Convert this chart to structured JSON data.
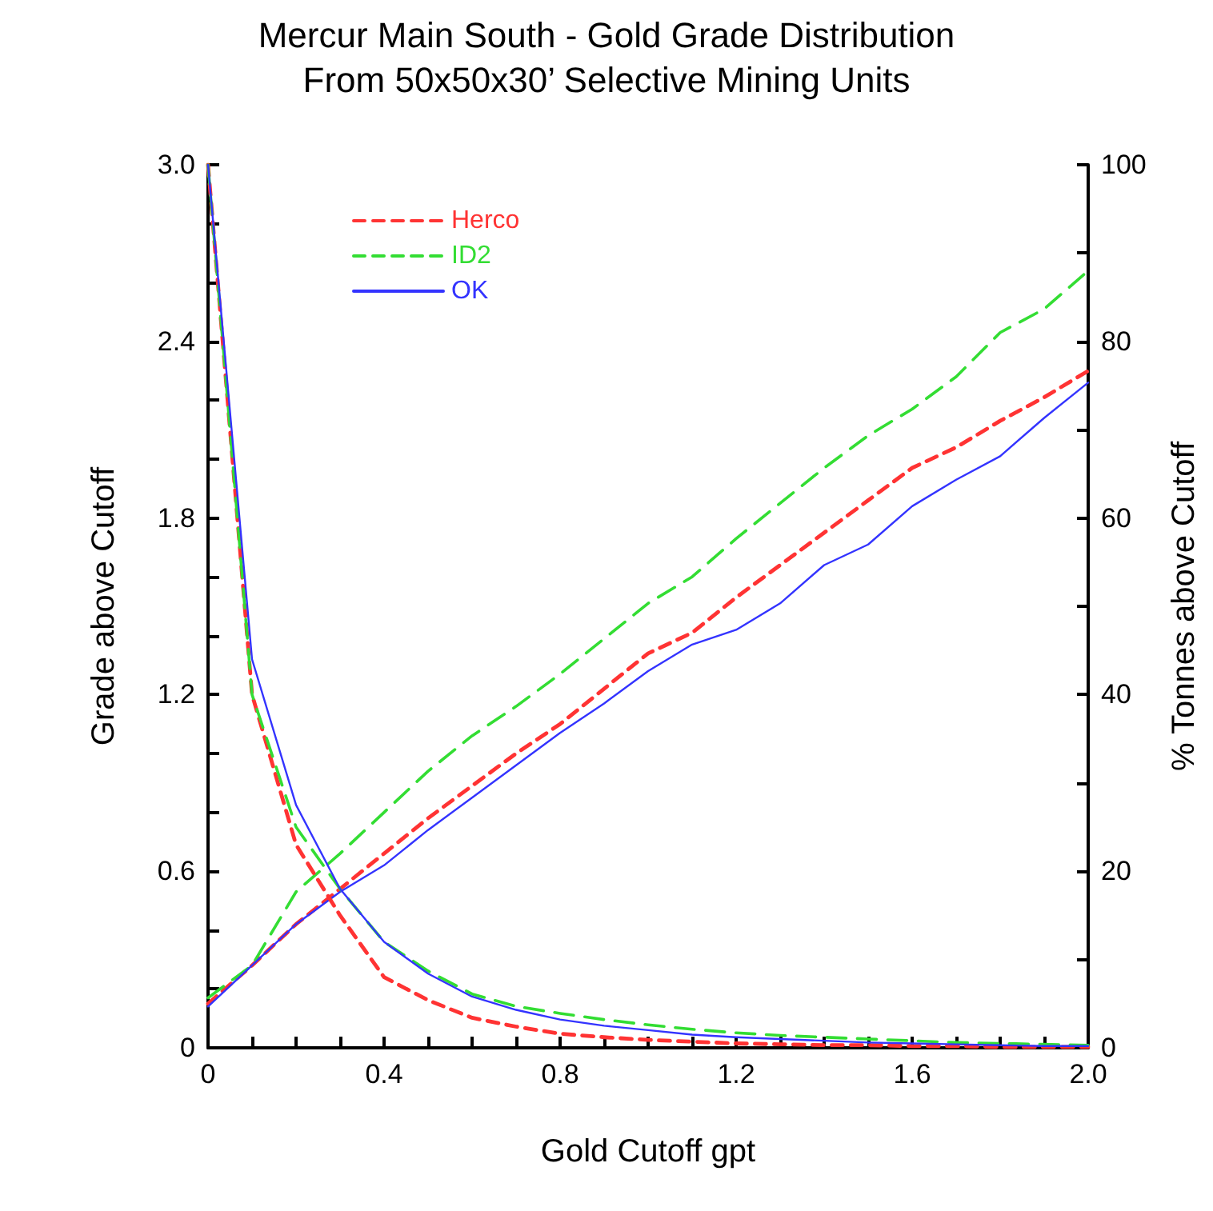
{
  "chart_data": {
    "type": "line",
    "title": "Mercur Main South - Gold Grade Distribution",
    "subtitle": "From 50x50x30’ Selective Mining Units",
    "xlabel": "Gold Cutoff gpt",
    "ylabel": "Grade above Cutoff",
    "y2label": "% Tonnes above Cutoff",
    "x": [
      0,
      0.1,
      0.2,
      0.3,
      0.4,
      0.5,
      0.6,
      0.7,
      0.8,
      0.9,
      1.0,
      1.1,
      1.2,
      1.3,
      1.4,
      1.5,
      1.6,
      1.7,
      1.8,
      1.9,
      2.0
    ],
    "xlim": [
      0,
      2
    ],
    "xticks": [
      0,
      {
        "value": 0.1,
        "label": null
      },
      {
        "value": 0.2,
        "label": null
      },
      {
        "value": 0.3,
        "label": null
      },
      0.4,
      {
        "value": 0.5,
        "label": null
      },
      {
        "value": 0.6,
        "label": null
      },
      {
        "value": 0.7,
        "label": null
      },
      0.8,
      {
        "value": 0.9,
        "label": null
      },
      {
        "value": 1.0,
        "label": null
      },
      {
        "value": 1.1,
        "label": null
      },
      1.2,
      {
        "value": 1.3,
        "label": null
      },
      {
        "value": 1.4,
        "label": null
      },
      {
        "value": 1.5,
        "label": null
      },
      1.6,
      {
        "value": 1.7,
        "label": null
      },
      {
        "value": 1.8,
        "label": null
      },
      {
        "value": 1.9,
        "label": null
      },
      {
        "value": 2.0,
        "label": "2.0"
      }
    ],
    "ylim": [
      0,
      3
    ],
    "yticks": [
      0,
      {
        "value": 0.2,
        "label": null
      },
      {
        "value": 0.4,
        "label": null
      },
      0.6,
      {
        "value": 0.8,
        "label": null
      },
      {
        "value": 1.0,
        "label": null
      },
      1.2,
      {
        "value": 1.4,
        "label": null
      },
      {
        "value": 1.6,
        "label": null
      },
      1.8,
      {
        "value": 2.0,
        "label": null
      },
      {
        "value": 2.2,
        "label": null
      },
      2.4,
      {
        "value": 2.6,
        "label": null
      },
      {
        "value": 2.8,
        "label": null
      },
      {
        "value": 3.0,
        "label": "3.0"
      }
    ],
    "y2lim": [
      0,
      100
    ],
    "y2ticks": [
      0,
      {
        "value": 10,
        "label": null
      },
      20,
      {
        "value": 30,
        "label": null
      },
      40,
      {
        "value": 50,
        "label": null
      },
      60,
      {
        "value": 70,
        "label": null
      },
      80,
      {
        "value": 90,
        "label": null
      },
      100
    ],
    "grid": false,
    "legend": "top left",
    "marker": "none",
    "series": [
      {
        "name": "Herco",
        "color": "#ff3333",
        "line_style": "dashed",
        "values": [
          0.15,
          0.28,
          0.42,
          0.54,
          0.66,
          0.78,
          0.89,
          1.0,
          1.1,
          1.22,
          1.34,
          1.41,
          1.53,
          1.64,
          1.75,
          1.86,
          1.97,
          2.04,
          2.13,
          2.21,
          2.3
        ]
      },
      {
        "name": "ID2",
        "color": "#33dd33",
        "line_style": "dashed",
        "values": [
          0.17,
          0.28,
          0.53,
          0.66,
          0.8,
          0.94,
          1.06,
          1.16,
          1.27,
          1.39,
          1.51,
          1.6,
          1.73,
          1.85,
          1.97,
          2.08,
          2.17,
          2.28,
          2.43,
          2.51,
          2.64
        ]
      },
      {
        "name": "OK",
        "color": "#3333ff",
        "line_style": "solid",
        "values": [
          0.14,
          0.28,
          0.42,
          0.53,
          0.62,
          0.74,
          0.85,
          0.96,
          1.07,
          1.17,
          1.28,
          1.37,
          1.42,
          1.51,
          1.64,
          1.71,
          1.84,
          1.93,
          2.01,
          2.14,
          2.26
        ]
      },
      {
        "color": "#ff3333",
        "line_style": "dashed",
        "axis": "y2",
        "values": [
          100,
          40,
          23,
          15,
          8,
          5.4,
          3.4,
          2.4,
          1.6,
          1.2,
          0.9,
          0.7,
          0.5,
          0.4,
          0.3,
          0.3,
          0.2,
          0.2,
          0.1,
          0.1,
          0.1
        ]
      },
      {
        "color": "#33dd33",
        "line_style": "dashed",
        "axis": "y2",
        "values": [
          100,
          40,
          25,
          18,
          12,
          8.7,
          6.1,
          4.7,
          3.9,
          3.2,
          2.6,
          2.1,
          1.7,
          1.4,
          1.2,
          1.0,
          0.8,
          0.6,
          0.5,
          0.4,
          0.3
        ]
      },
      {
        "color": "#3333ff",
        "line_style": "solid",
        "axis": "y2",
        "values": [
          100,
          44,
          27.5,
          18,
          12,
          8.4,
          5.8,
          4.3,
          3.2,
          2.5,
          2.0,
          1.5,
          1.2,
          1.0,
          0.8,
          0.6,
          0.5,
          0.4,
          0.3,
          0.2,
          0.2
        ]
      }
    ]
  }
}
